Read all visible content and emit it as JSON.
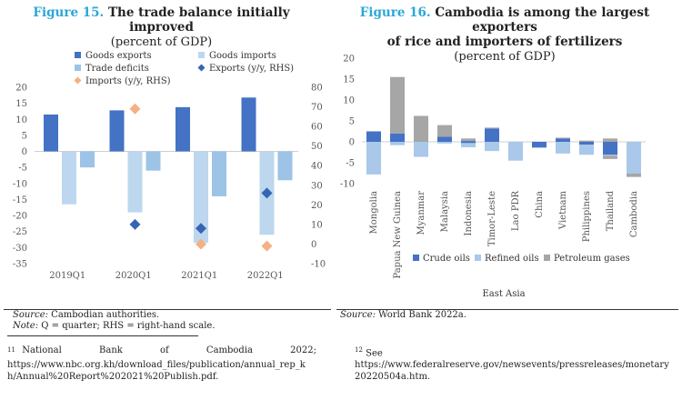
{
  "left_figure": {
    "number": "Figure 15.",
    "title": "The trade balance initially improved",
    "subtitle": "(percent of GDP)",
    "source_label": "Source:",
    "source_text": "Cambodian authorities.",
    "note_label": "Note:",
    "note_text": "Q = quarter; RHS = right-hand scale."
  },
  "right_figure": {
    "number": "Figure 16.",
    "title_line1": "Cambodia is among the largest exporters",
    "title_line2": "of rice and importers of fertilizers",
    "subtitle": "(percent of GDP)",
    "source_label": "Source:",
    "source_text": "World Bank 2022a."
  },
  "footnotes": {
    "left_num": "11",
    "left_text_line1": "National Bank of Cambodia 2022;",
    "left_text_line2": "https://www.nbc.org.kh/download_files/publication/annual_rep_k",
    "left_text_line3": "h/Annual%20Report%202021%20Publish.pdf.",
    "right_num": "12",
    "right_text_line1": "See",
    "right_text_line2": "https://www.federalreserve.gov/newsevents/pressreleases/monetary",
    "right_text_line3": "20220504a.htm."
  },
  "colors": {
    "accent_title": "#2aa7d6",
    "goods_exports": "#4472c4",
    "goods_imports": "#bdd7ee",
    "trade_deficits": "#9dc3e6",
    "exports_yy": "#3565b4",
    "imports_yy": "#f4b183",
    "crude_oils": "#4472c4",
    "refined_oils": "#a9c8ea",
    "petroleum_gases": "#a6a6a6"
  },
  "chart_data": [
    {
      "type": "bar",
      "categories": [
        "2019Q1",
        "2020Q1",
        "2021Q1",
        "2022Q1"
      ],
      "ylim": [
        -35,
        20
      ],
      "yticks": [
        20,
        15,
        10,
        5,
        0,
        -5,
        -10,
        -15,
        -20,
        -25,
        -30,
        -35
      ],
      "y2lim": [
        -10,
        80
      ],
      "y2ticks": [
        80,
        70,
        60,
        50,
        40,
        30,
        20,
        10,
        0,
        -10
      ],
      "series": [
        {
          "name": "Goods exports",
          "kind": "bar",
          "axis": "left",
          "values": [
            11.5,
            12.8,
            13.8,
            16.8
          ]
        },
        {
          "name": "Goods imports",
          "kind": "bar",
          "axis": "left",
          "values": [
            -16.5,
            -19,
            -28.5,
            -26
          ]
        },
        {
          "name": "Trade deficits",
          "kind": "bar",
          "axis": "left",
          "values": [
            -5,
            -6,
            -14,
            -9
          ]
        },
        {
          "name": "Exports (y/y, RHS)",
          "kind": "marker",
          "axis": "right",
          "values": [
            null,
            10,
            8,
            26
          ]
        },
        {
          "name": "Imports (y/y, RHS)",
          "kind": "marker",
          "axis": "right",
          "values": [
            null,
            69,
            0,
            -1
          ]
        }
      ],
      "legend": [
        "Goods exports",
        "Goods imports",
        "Trade deficits",
        "Exports (y/y, RHS)",
        "Imports (y/y, RHS)"
      ],
      "legend_position": "top",
      "grid": false
    },
    {
      "type": "bar",
      "stacked": true,
      "categories": [
        "Mongolia",
        "Papua New Guinea",
        "Myanmar",
        "Malaysia",
        "Indonesia",
        "Timor-Leste",
        "Lao PDR",
        "China",
        "Vietnam",
        "Philippines",
        "Thailand",
        "Cambodia"
      ],
      "xlabel": "East Asia",
      "ylim": [
        -10,
        20
      ],
      "yticks": [
        20,
        15,
        10,
        5,
        0,
        -5,
        -10
      ],
      "series": [
        {
          "name": "Crude oils",
          "pos": [
            2.5,
            2,
            0,
            1.2,
            0.2,
            3.2,
            0,
            0,
            0.8,
            0,
            0,
            0
          ],
          "neg": [
            0,
            0,
            0,
            0,
            -0.3,
            0,
            0,
            -1.3,
            0,
            -0.7,
            -3.1,
            0
          ]
        },
        {
          "name": "Refined oils",
          "pos": [
            0,
            0,
            0,
            0,
            0,
            0,
            0,
            0,
            0,
            0,
            0,
            0
          ],
          "neg": [
            -7.8,
            -0.8,
            -3.6,
            -0.4,
            -1,
            -2.2,
            -4.5,
            -0.2,
            -2.8,
            -2.4,
            -0.2,
            -7.6
          ]
        },
        {
          "name": "Petroleum gases",
          "pos": [
            0,
            13.5,
            6.2,
            2.8,
            0.6,
            0.2,
            0,
            0,
            0.2,
            0.3,
            0.8,
            0
          ],
          "neg": [
            0,
            0,
            0,
            0,
            0,
            0,
            0,
            0,
            0,
            0,
            -0.8,
            -0.8
          ]
        }
      ],
      "legend": [
        "Crude oils",
        "Refined oils",
        "Petroleum gases"
      ],
      "legend_position": "bottom",
      "grid": false
    }
  ]
}
